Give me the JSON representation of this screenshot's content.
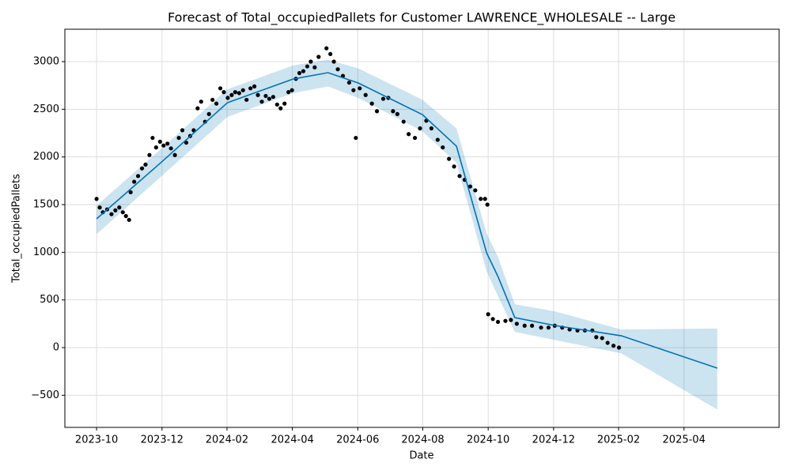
{
  "chart_data": {
    "type": "forecast",
    "title": "Forecast of Total_occupiedPallets for Customer LAWRENCE_WHOLESALE -- Large",
    "x_label": "Date",
    "y_label": "Total_occupiedPallets",
    "xlim": [
      2023.669,
      2025.493
    ],
    "ylim": [
      -837,
      3340
    ],
    "xticks": [
      {
        "value": 2023.75,
        "label": "2023-10"
      },
      {
        "value": 2023.917,
        "label": "2023-12"
      },
      {
        "value": 2024.083,
        "label": "2024-02"
      },
      {
        "value": 2024.25,
        "label": "2024-04"
      },
      {
        "value": 2024.417,
        "label": "2024-06"
      },
      {
        "value": 2024.583,
        "label": "2024-08"
      },
      {
        "value": 2024.75,
        "label": "2024-10"
      },
      {
        "value": 2024.917,
        "label": "2024-12"
      },
      {
        "value": 2025.083,
        "label": "2025-02"
      },
      {
        "value": 2025.25,
        "label": "2025-04"
      }
    ],
    "yticks": [
      {
        "value": -500,
        "label": "−500"
      },
      0,
      500,
      1000,
      1500,
      2000,
      2500,
      3000
    ],
    "grid": true,
    "forecast": {
      "color": "#0072b2",
      "band_color": "#0072b2",
      "x": [
        2023.75,
        2023.916,
        2024.084,
        2024.252,
        2024.341,
        2024.418,
        2024.582,
        2024.669,
        2024.746,
        2024.775,
        2024.818,
        2024.92,
        2025.09,
        2025.335
      ],
      "values": [
        1351,
        1947,
        2569,
        2818,
        2884,
        2776,
        2445,
        2113,
        994,
        746,
        315,
        232,
        124,
        -215
      ],
      "upper": [
        1490,
        2090,
        2710,
        2960,
        3020,
        2930,
        2600,
        2300,
        1200,
        950,
        455,
        380,
        190,
        200
      ],
      "lower": [
        1190,
        1800,
        2420,
        2670,
        2740,
        2620,
        2270,
        1940,
        800,
        540,
        165,
        80,
        -60,
        -650
      ]
    },
    "observed": {
      "color": "#000000",
      "x": [
        2023.75,
        2023.758,
        2023.766,
        2023.777,
        2023.788,
        2023.798,
        2023.808,
        2023.817,
        2023.825,
        2023.833,
        2023.837,
        2023.846,
        2023.856,
        2023.866,
        2023.875,
        2023.885,
        2023.893,
        2023.902,
        2023.912,
        2023.921,
        2023.931,
        2023.94,
        2023.95,
        2023.96,
        2023.969,
        2023.979,
        2023.989,
        2023.998,
        2024.008,
        2024.017,
        2024.027,
        2024.037,
        2024.046,
        2024.056,
        2024.066,
        2024.075,
        2024.085,
        2024.095,
        2024.104,
        2024.114,
        2024.124,
        2024.133,
        2024.143,
        2024.153,
        2024.162,
        2024.172,
        2024.182,
        2024.191,
        2024.201,
        2024.211,
        2024.22,
        2024.23,
        2024.24,
        2024.249,
        2024.259,
        2024.268,
        2024.278,
        2024.288,
        2024.297,
        2024.307,
        2024.317,
        2024.337,
        2024.347,
        2024.356,
        2024.366,
        2024.379,
        2024.395,
        2024.406,
        2024.412,
        2024.422,
        2024.437,
        2024.453,
        2024.466,
        2024.482,
        2024.495,
        2024.507,
        2024.518,
        2024.534,
        2024.547,
        2024.563,
        2024.576,
        2024.592,
        2024.605,
        2024.621,
        2024.634,
        2024.65,
        2024.663,
        2024.677,
        2024.69,
        2024.704,
        2024.717,
        2024.731,
        2024.742,
        2024.748,
        2024.75,
        2024.762,
        2024.775,
        2024.794,
        2024.808,
        2024.823,
        2024.843,
        2024.862,
        2024.885,
        2024.904,
        2024.92,
        2024.939,
        2024.958,
        2024.978,
        2024.997,
        2025.016,
        2025.026,
        2025.041,
        2025.055,
        2025.07,
        2025.084
      ],
      "values": [
        1560,
        1470,
        1420,
        1450,
        1400,
        1440,
        1470,
        1420,
        1380,
        1340,
        1630,
        1740,
        1800,
        1880,
        1920,
        2020,
        2200,
        2100,
        2160,
        2120,
        2140,
        2090,
        2020,
        2200,
        2280,
        2150,
        2220,
        2280,
        2510,
        2580,
        2370,
        2450,
        2600,
        2560,
        2720,
        2680,
        2620,
        2650,
        2680,
        2670,
        2700,
        2600,
        2720,
        2740,
        2650,
        2580,
        2640,
        2610,
        2630,
        2550,
        2510,
        2560,
        2680,
        2700,
        2820,
        2880,
        2900,
        2950,
        3000,
        2940,
        3050,
        3140,
        3080,
        3000,
        2920,
        2850,
        2780,
        2700,
        2200,
        2720,
        2650,
        2560,
        2480,
        2610,
        2620,
        2480,
        2450,
        2370,
        2240,
        2200,
        2300,
        2380,
        2300,
        2180,
        2100,
        1980,
        1900,
        1800,
        1760,
        1690,
        1650,
        1560,
        1560,
        1500,
        350,
        300,
        270,
        280,
        290,
        250,
        230,
        230,
        210,
        210,
        230,
        210,
        190,
        180,
        180,
        180,
        110,
        100,
        50,
        20,
        0
      ]
    }
  }
}
